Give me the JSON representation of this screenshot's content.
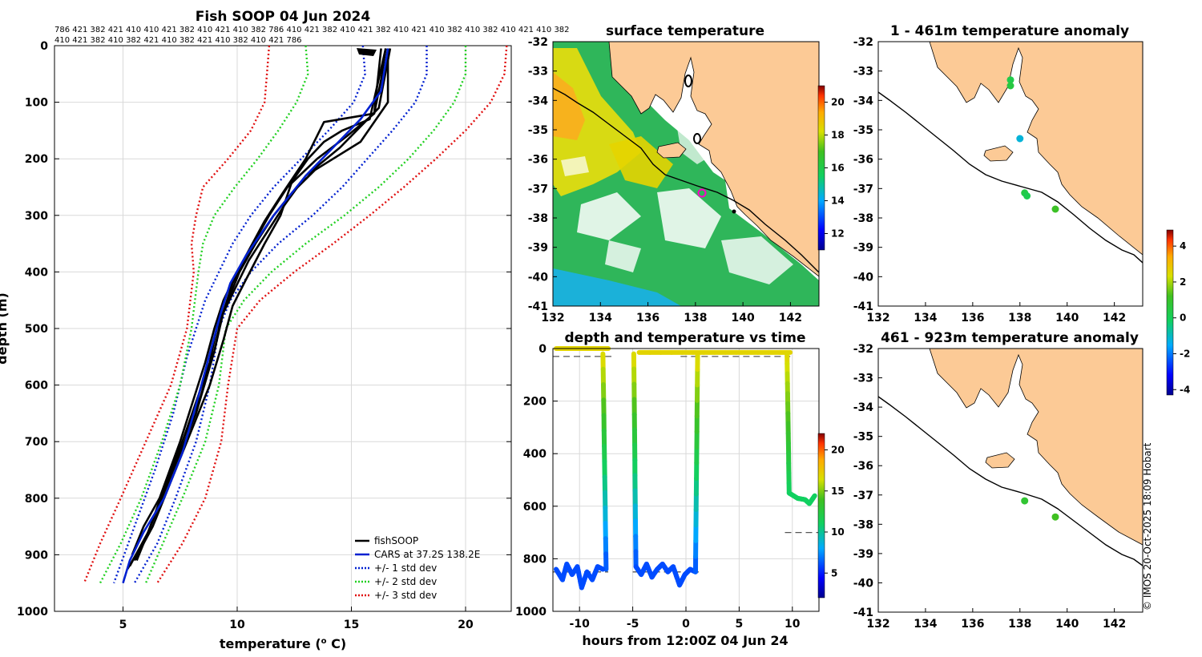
{
  "figure": {
    "credit": "© IMOS 20-Oct-2025 18:09 Hobart"
  },
  "colors": {
    "land": "#fcca96",
    "black": "#000000",
    "cars": "#0020d0",
    "std1": "#0020d0",
    "std2": "#22d022",
    "std3": "#e01010",
    "grid": "#d9d9d9"
  },
  "profile_panel": {
    "title": "Fish SOOP 04 Jun 2024",
    "profile_ids_row1": "786 421 382 421 410 410 421 382 410 421 410 382 786 410 421 382 410 421 382 410 421 410 382 410 382 410 421 410 382",
    "profile_ids_row2": "410 421 382 410 382 421 410 382 421 410 382 410 421 786",
    "xlabel_prefix": "temperature (",
    "xlabel_sup": "o",
    "xlabel_suffix": " C)",
    "ylabel": "depth (m)"
  },
  "sst_map": {
    "title": "surface temperature",
    "lat_ticks": [
      "-32",
      "-33",
      "-34",
      "-35",
      "-36",
      "-37",
      "-38",
      "-39",
      "-40",
      "-41"
    ],
    "lon_ticks": [
      "132",
      "134",
      "136",
      "138",
      "140",
      "142"
    ],
    "colorbar_ticks": [
      "12",
      "14",
      "16",
      "18",
      "20"
    ]
  },
  "timeseries_panel": {
    "title": "depth and temperature vs time",
    "xlabel": "hours from 12:00Z 04 Jun 24",
    "colorbar_ticks": [
      "5",
      "10",
      "15",
      "20"
    ]
  },
  "anom_map_1": {
    "title": "1 - 461m temperature anomaly",
    "lat_ticks": [
      "-32",
      "-33",
      "-34",
      "-35",
      "-36",
      "-37",
      "-38",
      "-39",
      "-40",
      "-41"
    ],
    "lon_ticks": [
      "132",
      "134",
      "136",
      "138",
      "140",
      "142"
    ]
  },
  "anom_map_2": {
    "title": "461 - 923m temperature anomaly",
    "lat_ticks": [
      "-32",
      "-33",
      "-34",
      "-35",
      "-36",
      "-37",
      "-38",
      "-39",
      "-40",
      "-41"
    ],
    "lon_ticks": [
      "132",
      "134",
      "136",
      "138",
      "140",
      "142"
    ]
  },
  "anomaly_colorbar": {
    "ticks": [
      "4",
      "2",
      "0",
      "-2",
      "-4"
    ]
  },
  "chart_data": [
    {
      "type": "line",
      "title": "Fish SOOP 04 Jun 2024",
      "xlabel": "temperature (o C)",
      "ylabel": "depth (m)",
      "xlim": [
        2,
        22
      ],
      "ylim": [
        1000,
        0
      ],
      "grid": true,
      "legend_position": "bottom-right",
      "xticks": [
        5,
        10,
        15,
        20
      ],
      "yticks": [
        0,
        100,
        200,
        300,
        400,
        500,
        600,
        700,
        800,
        900,
        1000
      ],
      "series": [
        {
          "name": "fishSOOP",
          "style": "black",
          "x": [
            16.5,
            16.3,
            16.0,
            14.8,
            13.5,
            12.2,
            11.4,
            10.7,
            10.0,
            9.4,
            9.0,
            8.6,
            7.5,
            6.6,
            5.9,
            5.4
          ],
          "y": [
            5,
            60,
            120,
            160,
            200,
            250,
            300,
            350,
            400,
            450,
            500,
            560,
            700,
            800,
            850,
            900
          ]
        },
        {
          "name": "fishSOOP",
          "style": "black",
          "x": [
            16.6,
            16.6,
            15.4,
            13.4,
            12.4,
            11.6,
            10.8,
            10.1,
            9.6,
            9.1,
            8.8,
            7.6,
            6.5,
            5.6
          ],
          "y": [
            5,
            100,
            170,
            220,
            260,
            300,
            350,
            400,
            450,
            500,
            560,
            700,
            820,
            910
          ]
        },
        {
          "name": "fishSOOP",
          "style": "black",
          "x": [
            16.7,
            16.2,
            14.5,
            13.0,
            12.1,
            11.3,
            10.5,
            9.9,
            9.3,
            9.0,
            8.4,
            7.2,
            6.1,
            5.3
          ],
          "y": [
            5,
            110,
            180,
            230,
            280,
            330,
            380,
            430,
            480,
            540,
            620,
            740,
            860,
            920
          ]
        },
        {
          "name": "fishSOOP",
          "style": "black",
          "x": [
            16.3,
            16.0,
            13.8,
            13.0,
            12.0,
            11.2,
            10.4,
            9.8,
            9.4,
            9.0,
            8.2,
            7.0,
            6.0,
            5.2
          ],
          "y": [
            5,
            120,
            135,
            200,
            260,
            310,
            370,
            420,
            470,
            540,
            650,
            770,
            870,
            925
          ]
        },
        {
          "name": "fishSOOP",
          "style": "black",
          "x": [
            16.5,
            15.8,
            14.6,
            13.8,
            13.1,
            12.4,
            11.9,
            11.2,
            10.3,
            9.8,
            9.4,
            8.8,
            7.4,
            6.3,
            5.5
          ],
          "y": [
            5,
            130,
            150,
            170,
            200,
            240,
            300,
            350,
            420,
            460,
            520,
            600,
            740,
            850,
            910
          ]
        },
        {
          "name": "CARS at 37.2S 138.2E",
          "style": "blue",
          "x": [
            16.6,
            16.3,
            15.4,
            14.2,
            13.0,
            11.6,
            10.4,
            9.7,
            9.3,
            8.7,
            8.1,
            7.6,
            6.8,
            5.9,
            5.3,
            5.0
          ],
          "y": [
            5,
            80,
            130,
            180,
            230,
            300,
            370,
            420,
            470,
            560,
            650,
            720,
            800,
            860,
            910,
            950
          ]
        },
        {
          "name": "+/- 1 std dev",
          "style": "std1",
          "x": [
            15.5,
            15.6,
            15.1,
            14.0,
            12.8,
            11.6,
            10.6,
            9.8,
            9.2,
            8.6,
            7.8,
            7.2,
            6.4,
            5.5,
            4.6
          ],
          "y": [
            0,
            50,
            100,
            150,
            200,
            250,
            300,
            350,
            400,
            450,
            550,
            650,
            750,
            850,
            950
          ]
        },
        {
          "name": "+/- 1 std dev",
          "style": "std1",
          "x": [
            18.3,
            18.3,
            17.8,
            16.8,
            15.7,
            14.6,
            13.3,
            11.8,
            10.6,
            9.7,
            9.2,
            8.8,
            8.2,
            7.3,
            6.5,
            5.5
          ],
          "y": [
            0,
            50,
            100,
            150,
            200,
            250,
            300,
            350,
            400,
            450,
            500,
            600,
            700,
            800,
            880,
            950
          ]
        },
        {
          "name": "+/- 2 std dev",
          "style": "std2",
          "x": [
            13.0,
            13.1,
            12.6,
            11.8,
            10.9,
            9.9,
            9.0,
            8.5,
            8.3,
            8.0,
            7.5,
            6.7,
            5.8,
            4.9,
            4.0
          ],
          "y": [
            0,
            50,
            100,
            150,
            200,
            250,
            300,
            350,
            400,
            500,
            600,
            700,
            800,
            880,
            950
          ]
        },
        {
          "name": "+/- 2 std dev",
          "style": "std2",
          "x": [
            20.0,
            20.0,
            19.5,
            18.6,
            17.5,
            16.2,
            14.7,
            13.0,
            11.5,
            10.3,
            9.5,
            9.2,
            8.6,
            7.6,
            6.0
          ],
          "y": [
            0,
            50,
            100,
            150,
            200,
            250,
            300,
            350,
            400,
            450,
            500,
            600,
            700,
            800,
            950
          ]
        },
        {
          "name": "+/- 3 std dev",
          "style": "std3",
          "x": [
            11.4,
            11.3,
            11.2,
            10.6,
            9.6,
            8.5,
            8.2,
            8.0,
            8.1,
            7.8,
            7.1,
            6.0,
            4.9,
            4.0,
            3.3
          ],
          "y": [
            0,
            50,
            100,
            150,
            200,
            250,
            300,
            350,
            400,
            500,
            600,
            700,
            800,
            880,
            950
          ]
        },
        {
          "name": "+/- 3 std dev",
          "style": "std3",
          "x": [
            21.8,
            21.7,
            21.1,
            20.0,
            18.7,
            17.3,
            15.8,
            14.2,
            12.5,
            11.0,
            10.0,
            9.6,
            9.3,
            8.6,
            7.6,
            6.5
          ],
          "y": [
            0,
            50,
            100,
            150,
            200,
            250,
            300,
            350,
            400,
            450,
            500,
            600,
            700,
            800,
            880,
            950
          ]
        }
      ]
    },
    {
      "type": "scatter",
      "title": "depth and temperature vs time",
      "xlabel": "hours from 12:00Z 04 Jun 24",
      "ylabel": "",
      "xlim": [
        -12.5,
        12.5
      ],
      "ylim": [
        1000,
        0
      ],
      "xticks": [
        -10,
        -5,
        0,
        5,
        10
      ],
      "yticks": [
        0,
        200,
        400,
        600,
        800,
        1000
      ],
      "clim": [
        2,
        22
      ],
      "series": [
        {
          "name": "track 1",
          "segments": [
            {
              "x": [
                -12.2,
                -7.3
              ],
              "y": [
                0,
                0
              ],
              "t": [
                17,
                17
              ]
            },
            {
              "x": [
                -7.8,
                -7.5
              ],
              "y": [
                20,
                840
              ],
              "t": [
                17,
                6
              ]
            },
            {
              "x": [
                -12.2,
                -11.6,
                -11.2,
                -10.7,
                -10.2,
                -9.8,
                -9.3,
                -8.8,
                -8.3,
                -7.8
              ],
              "y": [
                840,
                880,
                820,
                860,
                830,
                910,
                850,
                880,
                830,
                840
              ],
              "t": [
                6,
                6,
                6,
                6,
                6,
                6,
                6,
                6,
                6,
                6
              ]
            },
            {
              "x": [
                -4.9,
                -4.7
              ],
              "y": [
                20,
                830
              ],
              "t": [
                17,
                6
              ]
            },
            {
              "x": [
                -4.7,
                -4.2,
                -3.7,
                -3.2,
                -2.7,
                -2.2,
                -1.7,
                -1.2,
                -0.6,
                -0.1,
                0.4,
                0.9
              ],
              "y": [
                830,
                860,
                820,
                870,
                840,
                820,
                850,
                830,
                900,
                860,
                840,
                850
              ],
              "t": [
                6,
                6,
                6,
                6,
                6,
                6,
                6,
                6,
                6,
                6,
                6,
                6
              ]
            },
            {
              "x": [
                0.9,
                1.1
              ],
              "y": [
                850,
                20
              ],
              "t": [
                6,
                17
              ]
            },
            {
              "x": [
                -4.4,
                9.8
              ],
              "y": [
                15,
                15
              ],
              "t": [
                17,
                17
              ]
            },
            {
              "x": [
                9.5,
                9.7
              ],
              "y": [
                20,
                550
              ],
              "t": [
                17,
                11
              ]
            },
            {
              "x": [
                9.7,
                10.5,
                11.2,
                11.6,
                12.1
              ],
              "y": [
                550,
                570,
                575,
                590,
                560
              ],
              "t": [
                11,
                11,
                11,
                11,
                11
              ]
            }
          ]
        }
      ],
      "reference_lines": [
        {
          "y": 30,
          "x": [
            -12.5,
            -6.8
          ]
        },
        {
          "y": 30,
          "x": [
            -0.5,
            9.8
          ]
        },
        {
          "y": 850,
          "x": [
            -12.5,
            -7.3
          ]
        },
        {
          "y": 850,
          "x": [
            -5.0,
            1.2
          ]
        },
        {
          "y": 700,
          "x": [
            9.3,
            12.5
          ]
        }
      ]
    },
    {
      "type": "heatmap",
      "title": "surface temperature",
      "xlabel": "",
      "ylabel": "",
      "xlim": [
        132,
        143.2
      ],
      "ylim": [
        -41,
        -32
      ],
      "clim": [
        11,
        21
      ],
      "xticks": [
        132,
        134,
        136,
        138,
        140,
        142
      ],
      "yticks": [
        -32,
        -33,
        -34,
        -35,
        -36,
        -37,
        -38,
        -39,
        -40,
        -41
      ],
      "markers": [
        {
          "lon": 138.1,
          "lat": -37.2,
          "kind": "ring-magenta"
        },
        {
          "lon": 139.5,
          "lat": -37.8,
          "kind": "dot-black"
        }
      ]
    },
    {
      "type": "scatter",
      "title": "1 - 461m temperature anomaly",
      "xlim": [
        132,
        143.2
      ],
      "ylim": [
        -41,
        -32
      ],
      "clim": [
        -4.3,
        4.9
      ],
      "points": [
        {
          "lon": 137.6,
          "lat": -33.3,
          "anom": 0.3
        },
        {
          "lon": 137.6,
          "lat": -33.5,
          "anom": 0.5
        },
        {
          "lon": 138.0,
          "lat": -35.3,
          "anom": -1.2
        },
        {
          "lon": 138.2,
          "lat": -37.15,
          "anom": 0.4
        },
        {
          "lon": 138.3,
          "lat": -37.25,
          "anom": 0.2
        },
        {
          "lon": 139.5,
          "lat": -37.7,
          "anom": 1.1
        }
      ]
    },
    {
      "type": "scatter",
      "title": "461 - 923m temperature anomaly",
      "xlim": [
        132,
        143.2
      ],
      "ylim": [
        -41,
        -32
      ],
      "clim": [
        -4.3,
        4.9
      ],
      "points": [
        {
          "lon": 138.2,
          "lat": -37.2,
          "anom": 0.8
        },
        {
          "lon": 139.5,
          "lat": -37.75,
          "anom": 1.2
        }
      ]
    }
  ]
}
